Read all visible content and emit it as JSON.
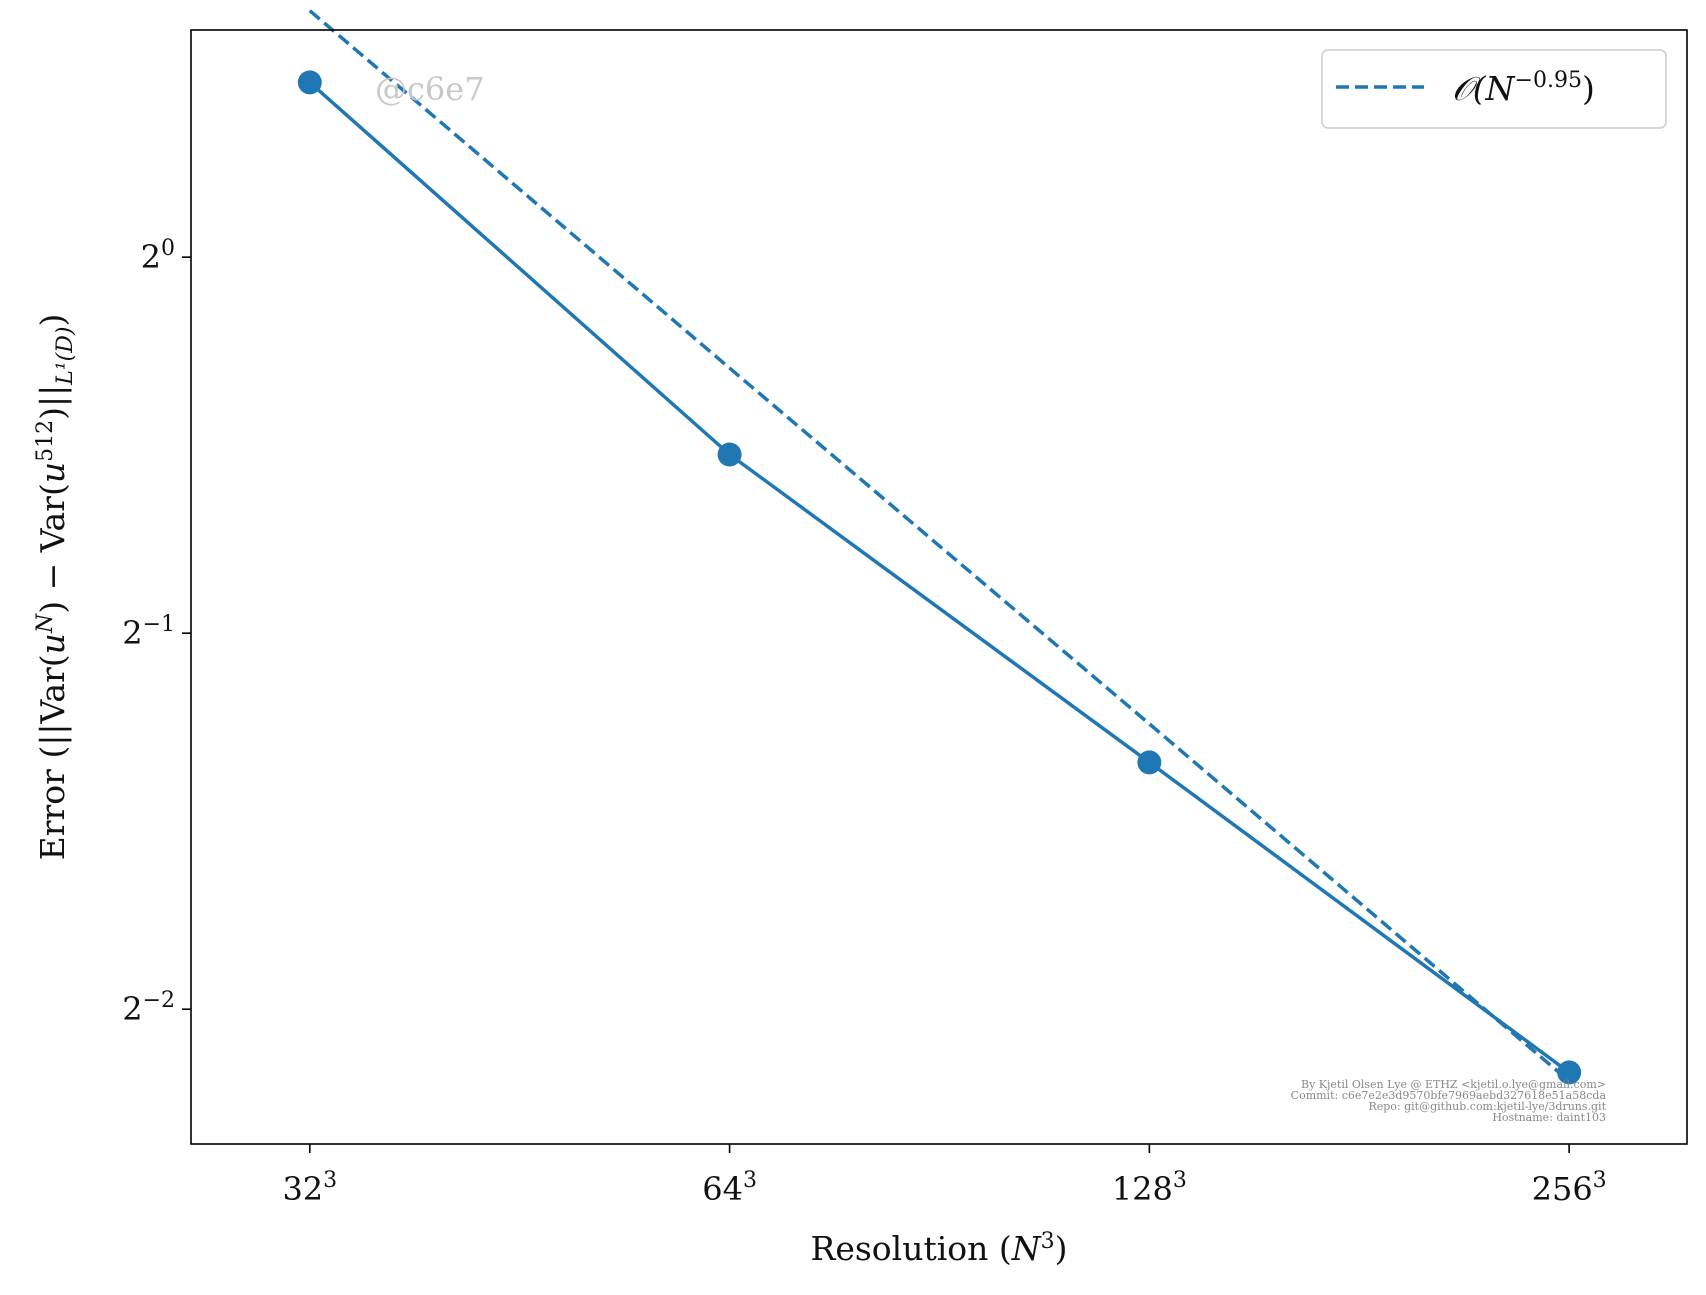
{
  "chart_data": {
    "type": "line",
    "x_scale": "log2",
    "y_scale": "log2",
    "categories": [
      "32",
      "64",
      "128",
      "256"
    ],
    "x": [
      32,
      64,
      128,
      256
    ],
    "xlim": [
      26.3,
      311
    ],
    "ylim": [
      0.195,
      1.52
    ],
    "x_ticks": [
      {
        "base": "32",
        "sup": "3"
      },
      {
        "base": "64",
        "sup": "3"
      },
      {
        "base": "128",
        "sup": "3"
      },
      {
        "base": "256",
        "sup": "3"
      }
    ],
    "y_ticks": [
      {
        "value": 1,
        "base": "2",
        "sup": "0"
      },
      {
        "value": 0.5,
        "base": "2",
        "sup": "−1"
      },
      {
        "value": 0.25,
        "base": "2",
        "sup": "−2"
      }
    ],
    "xlabel": {
      "text": "Resolution (",
      "var": "N",
      "sup": "3",
      "close": ")"
    },
    "ylabel": {
      "p1": "Error (||Var(",
      "u1": "u",
      "s1": "N",
      "p2": ") − Var(",
      "u2": "u",
      "s2": "512",
      "p3": ")||",
      "sub": "L¹(D)",
      "p4": ")"
    },
    "series": [
      {
        "style": "solid-markers",
        "color": "#1f77b4",
        "values": [
          1.38,
          0.695,
          0.394,
          0.2225
        ]
      },
      {
        "name": "𝒪(N",
        "name_sup": "−0.95",
        "name_close": ")",
        "style": "dashed",
        "color": "#1f77b4",
        "values": [
          1.575,
          0.815,
          0.423,
          0.219
        ]
      }
    ],
    "legend": "top-right",
    "grid": false
  },
  "watermark": "@c6e7",
  "credits": [
    "By Kjetil Olsen Lye @ ETHZ <kjetil.o.lye@gmail.com>",
    "Commit: c6e7e2e3d9570bfe7969aebd327618e51a58cda",
    "Repo: git@github.com:kjetil-lye/3druns.git",
    "Hostname: daint103"
  ]
}
